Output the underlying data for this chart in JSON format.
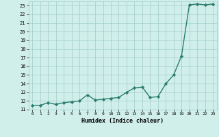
{
  "x": [
    0,
    1,
    2,
    3,
    4,
    5,
    6,
    7,
    8,
    9,
    10,
    11,
    12,
    13,
    14,
    15,
    16,
    17,
    18,
    19,
    20,
    21,
    22,
    23
  ],
  "y": [
    11.5,
    11.5,
    11.8,
    11.6,
    11.8,
    11.9,
    12.0,
    12.7,
    12.1,
    12.2,
    12.3,
    12.4,
    13.0,
    13.5,
    13.6,
    12.4,
    12.5,
    14.0,
    15.0,
    17.2,
    23.1,
    23.2,
    23.1,
    23.2
  ],
  "xlabel": "Humidex (Indice chaleur)",
  "ylabel": "",
  "title": "",
  "xlim": [
    -0.5,
    23.5
  ],
  "ylim": [
    11.0,
    23.5
  ],
  "yticks": [
    11,
    12,
    13,
    14,
    15,
    16,
    17,
    18,
    19,
    20,
    21,
    22,
    23
  ],
  "xticks": [
    0,
    1,
    2,
    3,
    4,
    5,
    6,
    7,
    8,
    9,
    10,
    11,
    12,
    13,
    14,
    15,
    16,
    17,
    18,
    19,
    20,
    21,
    22,
    23
  ],
  "line_color": "#2a7d6e",
  "bg_color": "#d0eeea",
  "grid_color": "#a0ccc8",
  "marker": "D",
  "markersize": 2.2,
  "linewidth": 1.0
}
